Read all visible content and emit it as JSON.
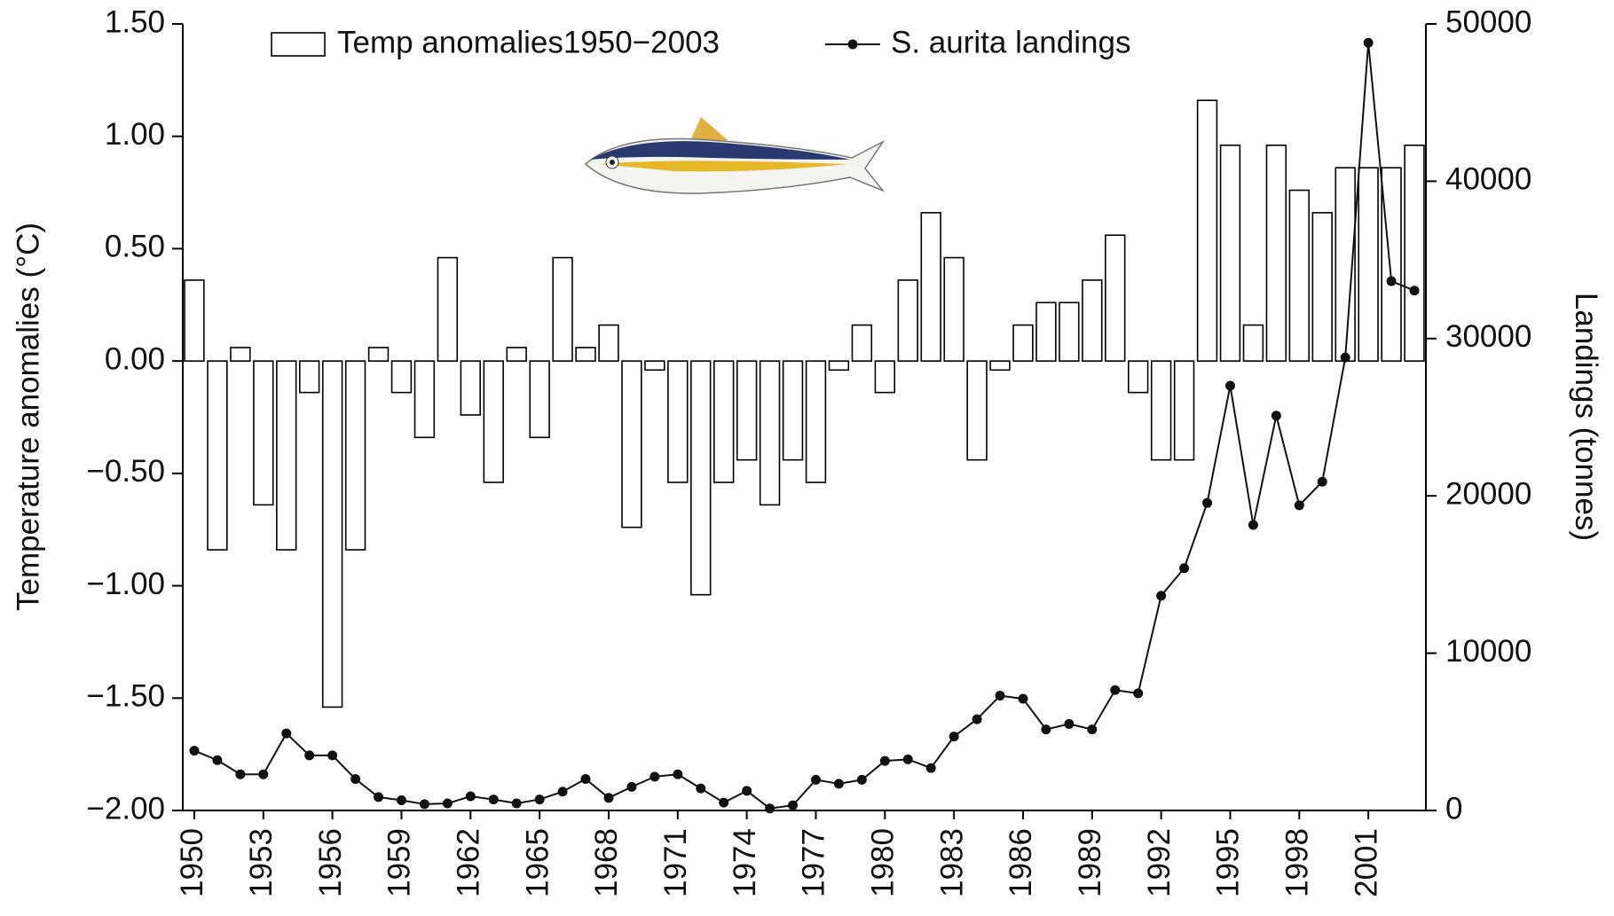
{
  "chart_data": {
    "type": "bar_line",
    "y_label": "Temperature anomalies (°C)",
    "y2_label": "Landings (tonnes)",
    "categories": [
      "1950",
      null,
      null,
      "1953",
      null,
      null,
      "1956",
      null,
      null,
      "1959",
      null,
      null,
      "1962",
      null,
      null,
      "1965",
      null,
      null,
      "1968",
      null,
      null,
      "1971",
      null,
      null,
      "1974",
      null,
      null,
      "1977",
      null,
      null,
      "1980",
      null,
      null,
      "1983",
      null,
      null,
      "1986",
      null,
      null,
      "1989",
      null,
      null,
      "1992",
      null,
      null,
      "1995",
      null,
      null,
      "1998",
      null,
      null,
      "2001",
      null,
      null
    ],
    "series": [
      {
        "name": "Temp anomalies1950−2003",
        "type": "bar",
        "color": "#ffffff",
        "axis": "y",
        "values": [
          0.36,
          -0.84,
          0.06,
          -0.64,
          -0.84,
          -0.14,
          -1.54,
          -0.84,
          0.06,
          -0.14,
          -0.34,
          0.46,
          -0.24,
          -0.54,
          0.06,
          -0.34,
          0.46,
          0.06,
          0.16,
          -0.74,
          -0.04,
          -0.54,
          -1.04,
          -0.54,
          -0.44,
          -0.64,
          -0.44,
          -0.54,
          -0.04,
          0.16,
          -0.14,
          0.36,
          0.66,
          0.46,
          -0.44,
          -0.04,
          0.16,
          0.26,
          0.26,
          0.36,
          0.56,
          -0.14,
          -0.44,
          -0.44,
          1.16,
          0.96,
          0.16,
          0.96,
          0.76,
          0.66,
          0.86,
          0.86,
          0.86,
          0.96
        ]
      },
      {
        "name": "S. aurita landings",
        "type": "line",
        "color": "#111111",
        "axis": "y2",
        "values": [
          3800,
          3200,
          2300,
          2300,
          4900,
          3500,
          3500,
          2000,
          850,
          650,
          400,
          450,
          900,
          700,
          450,
          700,
          1200,
          2000,
          800,
          1500,
          2150,
          2300,
          1400,
          500,
          1250,
          130,
          330,
          1950,
          1700,
          1950,
          3150,
          3250,
          2700,
          4700,
          5800,
          7300,
          7100,
          5150,
          5500,
          5150,
          7650,
          7450,
          13650,
          15400,
          19550,
          27000,
          18150,
          25100,
          19400,
          20900,
          28800,
          48800,
          33650,
          33050
        ]
      }
    ],
    "ylim": [
      -2,
      1.5
    ],
    "yticks": [
      {
        "value": -2,
        "label": "−2.00"
      },
      {
        "value": -1.5,
        "label": "−1.50"
      },
      {
        "value": -1,
        "label": "−1.00"
      },
      {
        "value": -0.5,
        "label": "−0.50"
      },
      {
        "value": 0,
        "label": "0.00"
      },
      {
        "value": 0.5,
        "label": "0.50"
      },
      {
        "value": 1,
        "label": "1.00"
      },
      {
        "value": 1.5,
        "label": "1.50"
      }
    ],
    "y2lim": [
      0,
      50000
    ],
    "y2ticks": [
      0,
      10000,
      20000,
      30000,
      40000,
      50000
    ],
    "legend": "top"
  }
}
